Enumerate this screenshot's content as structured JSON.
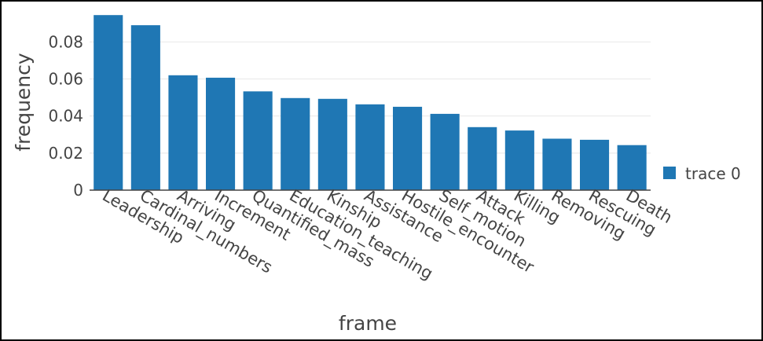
{
  "chart_data": {
    "type": "bar",
    "title": "",
    "xlabel": "frame",
    "ylabel": "frequency",
    "ylim": [
      0,
      0.095
    ],
    "y_ticks": [
      "0",
      "0.02",
      "0.04",
      "0.06",
      "0.08"
    ],
    "categories": [
      "Leadership",
      "Cardinal_numbers",
      "Arriving",
      "Increment",
      "Quantified_mass",
      "Education_teaching",
      "Kinship",
      "Assistance",
      "Hostile_encounter",
      "Self_motion",
      "Attack",
      "Killing",
      "Removing",
      "Rescuing",
      "Death"
    ],
    "series": [
      {
        "name": "trace 0",
        "color": "#1f77b4",
        "values": [
          0.0945,
          0.089,
          0.062,
          0.0607,
          0.0533,
          0.0497,
          0.0493,
          0.0463,
          0.045,
          0.0412,
          0.034,
          0.0322,
          0.0278,
          0.0272,
          0.0243
        ]
      }
    ],
    "grid": true,
    "legend_position": "right"
  }
}
